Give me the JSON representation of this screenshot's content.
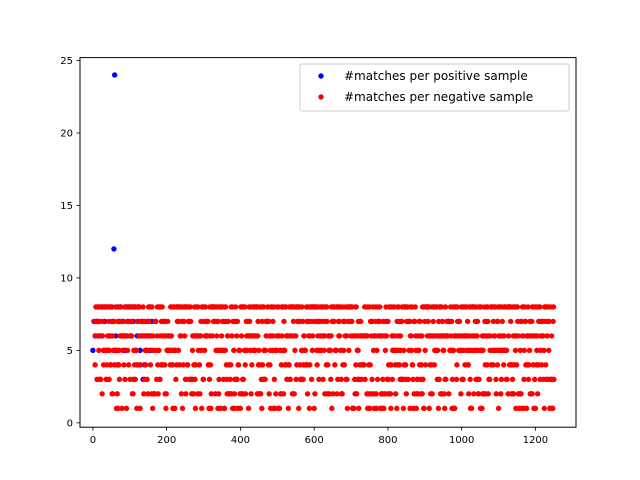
{
  "chart_data": {
    "type": "scatter",
    "title": "",
    "xlabel": "",
    "ylabel": "",
    "xlim": [
      -35,
      1310
    ],
    "ylim": [
      -0.3,
      25.2
    ],
    "xticks": [
      0,
      200,
      400,
      600,
      800,
      1000,
      1200
    ],
    "yticks": [
      0,
      5,
      10,
      15,
      20,
      25
    ],
    "grid": false,
    "legend_position": "upper-right",
    "series": [
      {
        "name": "#matches per positive sample",
        "color": "#0000ff",
        "points": [
          [
            0,
            5
          ],
          [
            3,
            7
          ],
          [
            6,
            6
          ],
          [
            10,
            7
          ],
          [
            14,
            6
          ],
          [
            18,
            7
          ],
          [
            22,
            6
          ],
          [
            27,
            8
          ],
          [
            32,
            7
          ],
          [
            38,
            8
          ],
          [
            44,
            6
          ],
          [
            48,
            4
          ],
          [
            52,
            8
          ],
          [
            55,
            7
          ],
          [
            57,
            12
          ],
          [
            59,
            24
          ],
          [
            62,
            6
          ],
          [
            65,
            5
          ],
          [
            68,
            8
          ],
          [
            72,
            7
          ],
          [
            75,
            8
          ],
          [
            78,
            6
          ],
          [
            82,
            7
          ],
          [
            86,
            5
          ],
          [
            90,
            6
          ],
          [
            93,
            8
          ],
          [
            96,
            7
          ],
          [
            100,
            8
          ],
          [
            104,
            6
          ],
          [
            107,
            8
          ],
          [
            110,
            7
          ],
          [
            113,
            5
          ],
          [
            116,
            8
          ],
          [
            120,
            6
          ],
          [
            124,
            7
          ],
          [
            128,
            5
          ],
          [
            132,
            6
          ],
          [
            136,
            3
          ],
          [
            140,
            4
          ],
          [
            145,
            6
          ],
          [
            150,
            7
          ],
          [
            156,
            5
          ],
          [
            160,
            7
          ]
        ]
      },
      {
        "name": "#matches per negative sample",
        "color": "#ff0000",
        "points": []
      }
    ]
  }
}
